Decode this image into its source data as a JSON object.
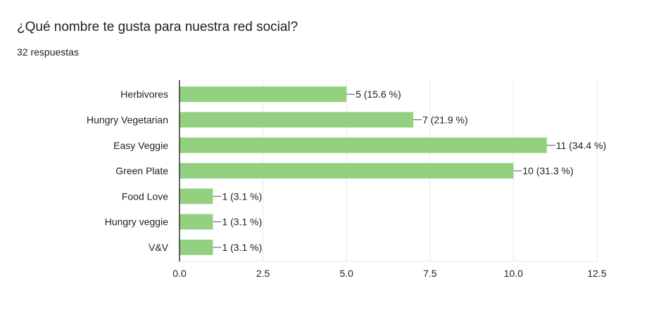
{
  "question": {
    "title": "¿Qué nombre te gusta para nuestra red social?",
    "responses": "32 respuestas"
  },
  "colors": {
    "bar": "#93d07f",
    "axis": "#333333",
    "grid": "#e8e8e8",
    "text": "#222222"
  },
  "chart_data": {
    "type": "bar",
    "orientation": "horizontal",
    "categories": [
      "Herbivores",
      "Hungry Vegetarian",
      "Easy Veggie",
      "Green Plate",
      "Food Love",
      "Hungry veggie",
      "V&V"
    ],
    "values": [
      5,
      7,
      11,
      10,
      1,
      1,
      1
    ],
    "data_labels": [
      "5 (15.6 %)",
      "7 (21.9 %)",
      "11 (34.4 %)",
      "10 (31.3 %)",
      "1 (3.1 %)",
      "1 (3.1 %)",
      "1 (3.1 %)"
    ],
    "xlim": [
      0,
      12.5
    ],
    "xticks": [
      "0.0",
      "2.5",
      "5.0",
      "7.5",
      "10.0",
      "12.5"
    ],
    "grid": true,
    "legend": false
  }
}
